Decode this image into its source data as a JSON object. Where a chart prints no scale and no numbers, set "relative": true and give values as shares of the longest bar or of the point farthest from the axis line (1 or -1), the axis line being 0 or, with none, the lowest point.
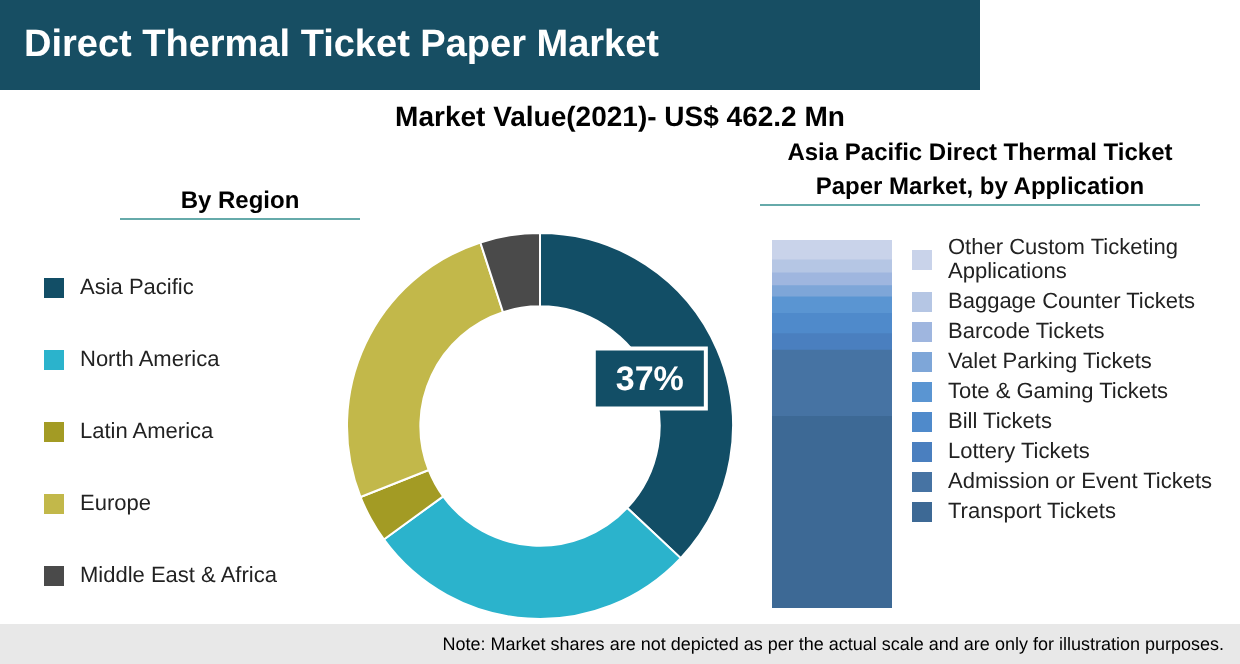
{
  "chart_data": [
    {
      "type": "donut",
      "title": "Direct Thermal Ticket Paper Market",
      "subtitle": "Market Value(2021)- US$ 462.2 Mn",
      "legend": "left",
      "categories": [
        "Asia Pacific",
        "North America",
        "Latin America",
        "Europe",
        "Middle East & Africa"
      ],
      "values": [
        37,
        28,
        4,
        26,
        5
      ],
      "colors": [
        "#124e66",
        "#2bb3cc",
        "#a39b24",
        "#c2b84a",
        "#4a4a4a"
      ],
      "value_labels": [
        "37%",
        null,
        null,
        null,
        null
      ],
      "annotations": [
        "By Region",
        "Note: Market shares are not depicted as per the actual scale and are only for illustration purposes."
      ]
    },
    {
      "type": "bar",
      "title": "Asia Pacific Direct Thermal Ticket Paper Market, by Application",
      "stacked": true,
      "relative": true,
      "legend": "right",
      "categories": [
        null
      ],
      "series": [
        {
          "name": "Transport Tickets",
          "color": "#3d6995",
          "values": [
            0.52
          ]
        },
        {
          "name": "Admission or Event Tickets",
          "color": "#4673a3",
          "values": [
            0.18
          ]
        },
        {
          "name": "Lottery Tickets",
          "color": "#4a7fbf",
          "values": [
            0.045
          ]
        },
        {
          "name": "Bill Tickets",
          "color": "#4f8acb",
          "values": [
            0.055
          ]
        },
        {
          "name": "Tote & Gaming Tickets",
          "color": "#5a95d2",
          "values": [
            0.045
          ]
        },
        {
          "name": "Valet Parking Tickets",
          "color": "#7ea6d8",
          "values": [
            0.03
          ]
        },
        {
          "name": "Barcode Tickets",
          "color": "#9fb6df",
          "values": [
            0.035
          ]
        },
        {
          "name": "Baggage Counter Tickets",
          "color": "#b5c6e4",
          "values": [
            0.035
          ]
        },
        {
          "name": "Other Custom Ticketing Applications",
          "color": "#c9d3ea",
          "values": [
            0.055
          ]
        }
      ]
    }
  ]
}
